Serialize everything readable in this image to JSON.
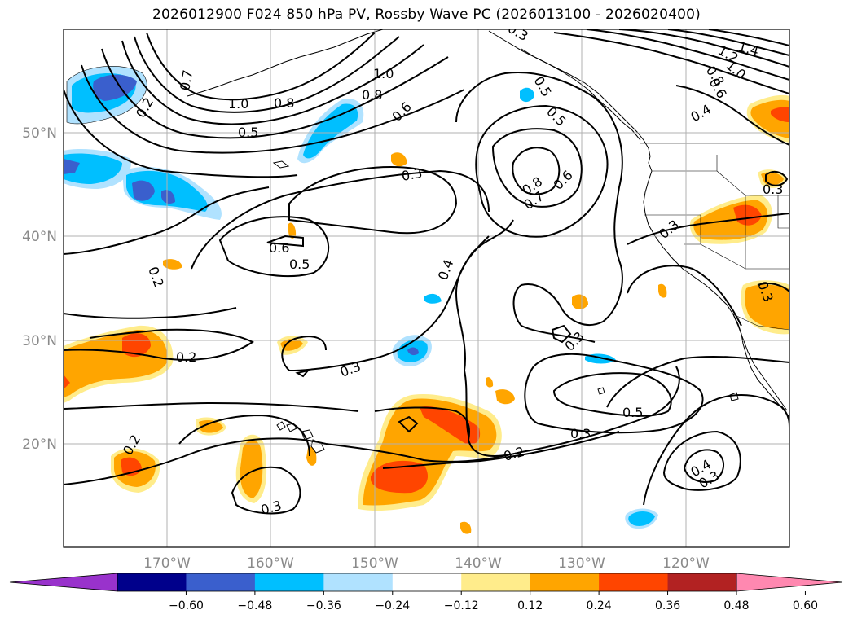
{
  "title": "2026012900 F024 850 hPa PV, Rossby Wave PC (2026013100 - 2026020400)",
  "lat_labels": [
    "50°N",
    "40°N",
    "30°N",
    "20°N"
  ],
  "lon_labels": [
    "170°W",
    "160°W",
    "150°W",
    "140°W",
    "130°W",
    "120°W"
  ],
  "colorbar": {
    "tick_labels": [
      "−0.60",
      "−0.48",
      "−0.36",
      "−0.24",
      "−0.12",
      "0.12",
      "0.24",
      "0.36",
      "0.48",
      "0.60"
    ],
    "colors": [
      "#9932cc",
      "#00008b",
      "#3a5fcd",
      "#00bfff",
      "#b0e2ff",
      "#ffffff",
      "#ffec8b",
      "#ffa500",
      "#ff4500",
      "#b22222",
      "#ff88b0"
    ]
  },
  "contour_labels": [
    "1.4",
    "1.2",
    "1.0",
    "0.8",
    "0.6",
    "0.7",
    "0.2",
    "1.0",
    "0.8",
    "0.5",
    "1.0",
    "0.8",
    "0.6",
    "0.5",
    "0.5",
    "0.4",
    "0.3",
    "0.8",
    "0.7",
    "0.6",
    "0.3",
    "0.6",
    "0.5",
    "0.2",
    "0.4",
    "0.3",
    "0.3",
    "0.3",
    "0.2",
    "0.3",
    "0.5",
    "0.3",
    "0.2",
    "0.2",
    "0.3",
    "0.4",
    "0.3",
    "0.3"
  ]
}
